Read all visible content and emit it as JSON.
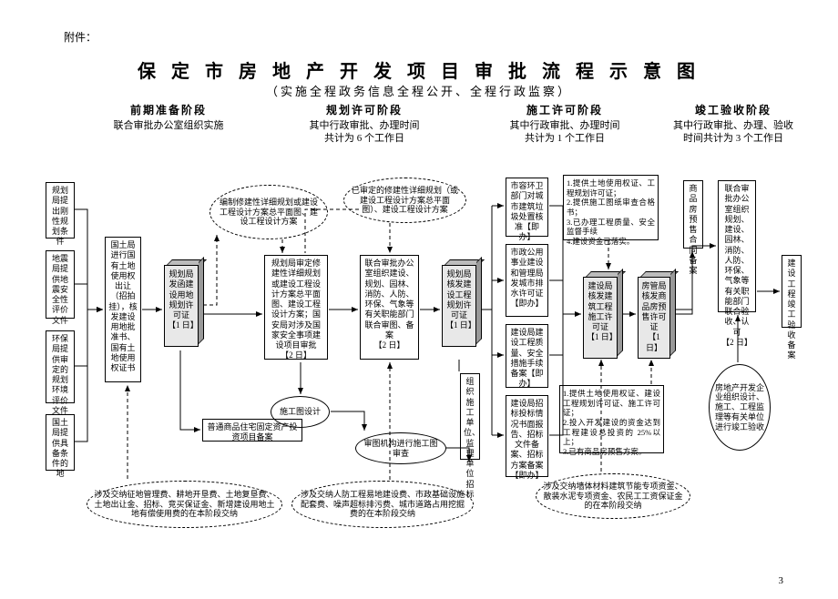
{
  "attachment_label": "附件：",
  "title": "保 定 市 房 地 产 开 发 项 目 审 批 流 程 示 意 图",
  "subtitle": "（实施全程政务信息全程公开、全程行政监察）",
  "page_number": "3",
  "stages": {
    "s1": {
      "name": "前期准备阶段",
      "desc": "联合审批办公室组织实施"
    },
    "s2": {
      "name": "规划许可阶段",
      "desc": "其中行政审批、办理时间\n共计为 6 个工作日"
    },
    "s3": {
      "name": "施工许可阶段",
      "desc": "其中行政审批、办理时间\n共计为 1 个工作日"
    },
    "s4": {
      "name": "竣工验收阶段",
      "desc": "其中行政审批、办理、验收\n时间共计为 3 个工作日"
    }
  },
  "boxes": {
    "b1": "规划局提出刚性规划条件",
    "b2": "地震局提供地震安全性评价文件",
    "b3": "环保局提供审定的规划环境评价文件",
    "b4": "国土局提供具备条件的地",
    "b5": "国土局进行国有土地使用权出让（招拍挂），核发建设用地批准书、国有土地使用权证书",
    "b6": "普通商品住宅固定资产投资项目备案",
    "b7": "规划局审定修建性详细规划或建设工程设计方案总平面图、建设工程设计方案；国安局对涉及国家安全事项建设项目审批\n【2 日】",
    "b8": "联合审批办公室组织建设、规划、园林、消防、人防、环保、气象等有关职能部门联合审图、备案\n【2 日】",
    "b9": "市容环卫部门对城市建筑垃圾处置核准【即办】",
    "b10": "市政公用事业建设和管理局发城市排水许可证【即办】",
    "b11": "建设局建设工程质量、安全措施手续备案【即办】",
    "b12": "建设局招标投标情况书面报告、招标文件备案、招标方案备案【即办】",
    "b13": "组织施工单位、监理单位招标",
    "b14": "商品房预售合同备案",
    "b15": "联合审批办公室组织规划、建设、园林、消防、人防、环保、气象等有关职能部门联合验收、认可\n【2 日】",
    "b16": "建设工程竣工验收备案",
    "note1": "1.提供土地使用权证、工程规划许可证；\n2.提供施工图纸审查合格书；\n3.已办理工程质量、安全监督手续\n4.建设资金已落实。",
    "note2": "1.提供土地使用权证、建设工程规划许可证、施工许可证；\n2.投入开发建设的资金达到工程建设总投资的 25%以上；\n3.已有商品房预售方案。"
  },
  "ellipses": {
    "e1": "编制修建性详细规划或建设工程设计方案总平面图、建设工程设计方案",
    "e2": "已审定的修建性详细规划（或建设工程设计方案总平面图）、建设工程设计方案",
    "e3": "施工图设计",
    "e4": "审图机构进行施工图审查",
    "e5": "涉及交纳征地管理费、耕地开垦费、土地复垦费、土地出让金、招标、竞买保证金、新增建设用地土地有偿使用费的在本阶段交纳",
    "e6": "涉及交纳人防工程易地建设费、市政基础设施配套费、噪声超标排污费、城市道路占用挖掘费的在本阶段交纳",
    "e7": "涉及交纳墙体材料建筑节能专项资金、散装水泥专项资金、农民工工资保证金的在本阶段交纳",
    "e8": "房地产开发企业组织设计、施工、工程监理等有关单位进行竣工验收"
  },
  "cubes": {
    "c1": "规划局发函建设用地规划许可证\n【1 日】",
    "c2": "规划局核发建设工程规划许可证\n【1 日】",
    "c3": "建设局核发建筑工程施工许可证\n【1 日】",
    "c4": "房管局核发商品房预售许可证\n【1 日】"
  },
  "style": {
    "background": "#ffffff",
    "cube_front": "#e8e8e8",
    "cube_top": "#bcbcbc",
    "cube_side": "#999999",
    "stroke": "#000000",
    "font_main": "SimSun"
  }
}
